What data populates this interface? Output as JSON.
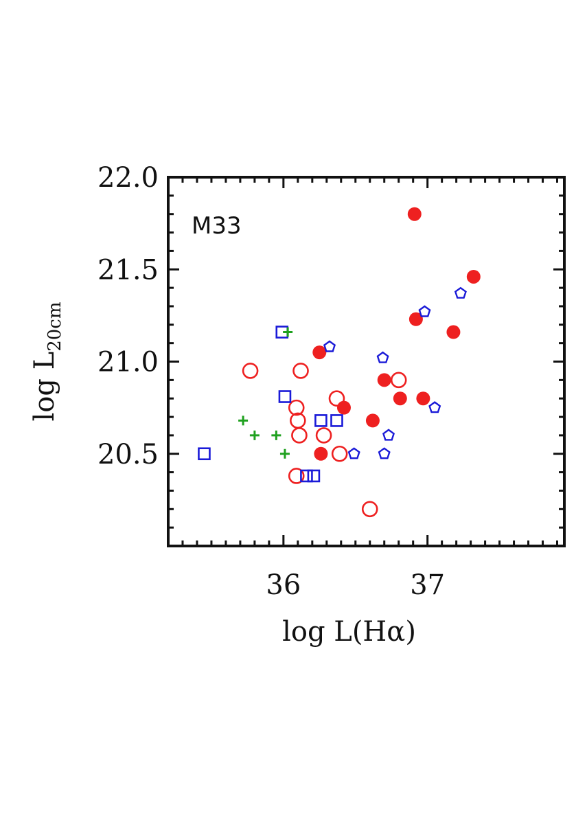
{
  "chart_data": {
    "type": "scatter",
    "title": "",
    "panel_label": "M33",
    "xlabel": "log L(Hα)",
    "ylabel_main": "log L",
    "ylabel_sub": "20cm",
    "xlim": [
      35.2,
      37.95
    ],
    "ylim": [
      20.0,
      22.0
    ],
    "xticks": [
      36,
      37
    ],
    "yticks": [
      20.5,
      21.0,
      21.5,
      22.0
    ],
    "ytick_labels": [
      "20.5",
      "21.0",
      "21.5",
      "22.0"
    ],
    "grid": false,
    "legend": "none",
    "series": [
      {
        "marker": "filled-circle",
        "color": "#ee2020",
        "x": [
          36.91,
          37.32,
          36.92,
          37.18,
          36.25,
          36.7,
          36.81,
          36.97,
          36.42,
          36.62,
          36.26
        ],
        "y": [
          21.8,
          21.46,
          21.23,
          21.16,
          21.05,
          20.9,
          20.8,
          20.8,
          20.75,
          20.68,
          20.5
        ]
      },
      {
        "marker": "open-circle",
        "color": "#ee2020",
        "x": [
          35.77,
          36.12,
          36.8,
          36.37,
          36.09,
          36.1,
          36.11,
          36.28,
          36.39,
          36.09,
          36.6
        ],
        "y": [
          20.95,
          20.95,
          20.9,
          20.8,
          20.75,
          20.68,
          20.6,
          20.6,
          20.5,
          20.38,
          20.2
        ]
      },
      {
        "marker": "open-square",
        "color": "#1a1ad8",
        "x": [
          35.45,
          35.99,
          36.01,
          36.26,
          36.37,
          36.16,
          36.21
        ],
        "y": [
          20.5,
          21.16,
          20.81,
          20.68,
          20.68,
          20.38,
          20.38
        ]
      },
      {
        "marker": "open-pentagon",
        "color": "#1a1ad8",
        "x": [
          37.23,
          36.98,
          36.32,
          36.69,
          37.05,
          36.73,
          36.7,
          36.49
        ],
        "y": [
          21.37,
          21.27,
          21.08,
          21.02,
          20.75,
          20.6,
          20.5,
          20.5
        ]
      },
      {
        "marker": "plus",
        "color": "#1fa11f",
        "x": [
          36.03,
          35.72,
          35.8,
          35.95,
          36.01
        ],
        "y": [
          21.16,
          20.68,
          20.6,
          20.6,
          20.5
        ]
      }
    ]
  }
}
